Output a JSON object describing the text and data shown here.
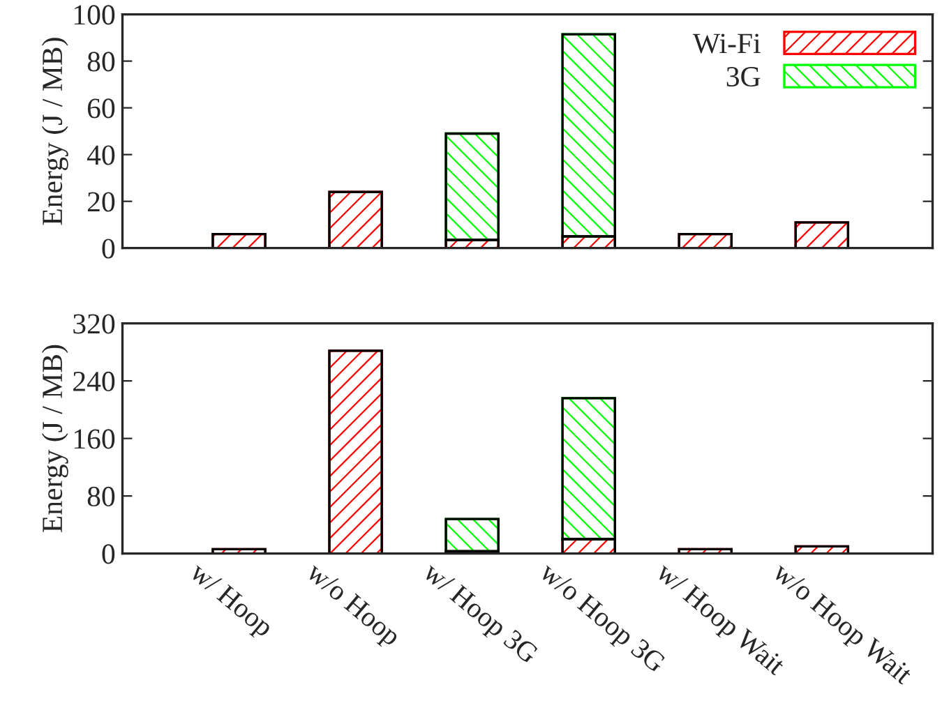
{
  "chart_data": [
    {
      "type": "bar",
      "stacked": true,
      "ylabel": "Energy (J / MB)",
      "categories": [
        null,
        null,
        null,
        null,
        null,
        null
      ],
      "ylim": [
        0,
        100
      ],
      "yticks": [
        0,
        20,
        40,
        60,
        80,
        100
      ],
      "tick_labels": "y",
      "legend": "top right",
      "series": [
        {
          "name": "Wi-Fi",
          "color": "#ff0000",
          "values": [
            6,
            24,
            3.5,
            5,
            6,
            11
          ]
        },
        {
          "name": "3G",
          "color": "#00ff00",
          "values": [
            0,
            0,
            45.5,
            86.5,
            0,
            0
          ]
        }
      ]
    },
    {
      "type": "bar",
      "stacked": true,
      "ylabel": "Energy (J / MB)",
      "categories": [
        "w/ Hoop",
        "w/o Hoop",
        "w/ Hoop 3G",
        "w/o Hoop 3G",
        "w/ Hoop Wait",
        "w/o Hoop Wait"
      ],
      "ylim": [
        0,
        320
      ],
      "yticks": [
        0,
        80,
        160,
        240,
        320
      ],
      "series": [
        {
          "color": "#ff0000",
          "values": [
            6,
            282,
            3,
            20,
            6,
            10
          ]
        },
        {
          "color": "#00ff00",
          "values": [
            0,
            0,
            45,
            196,
            0,
            0
          ]
        }
      ]
    }
  ]
}
